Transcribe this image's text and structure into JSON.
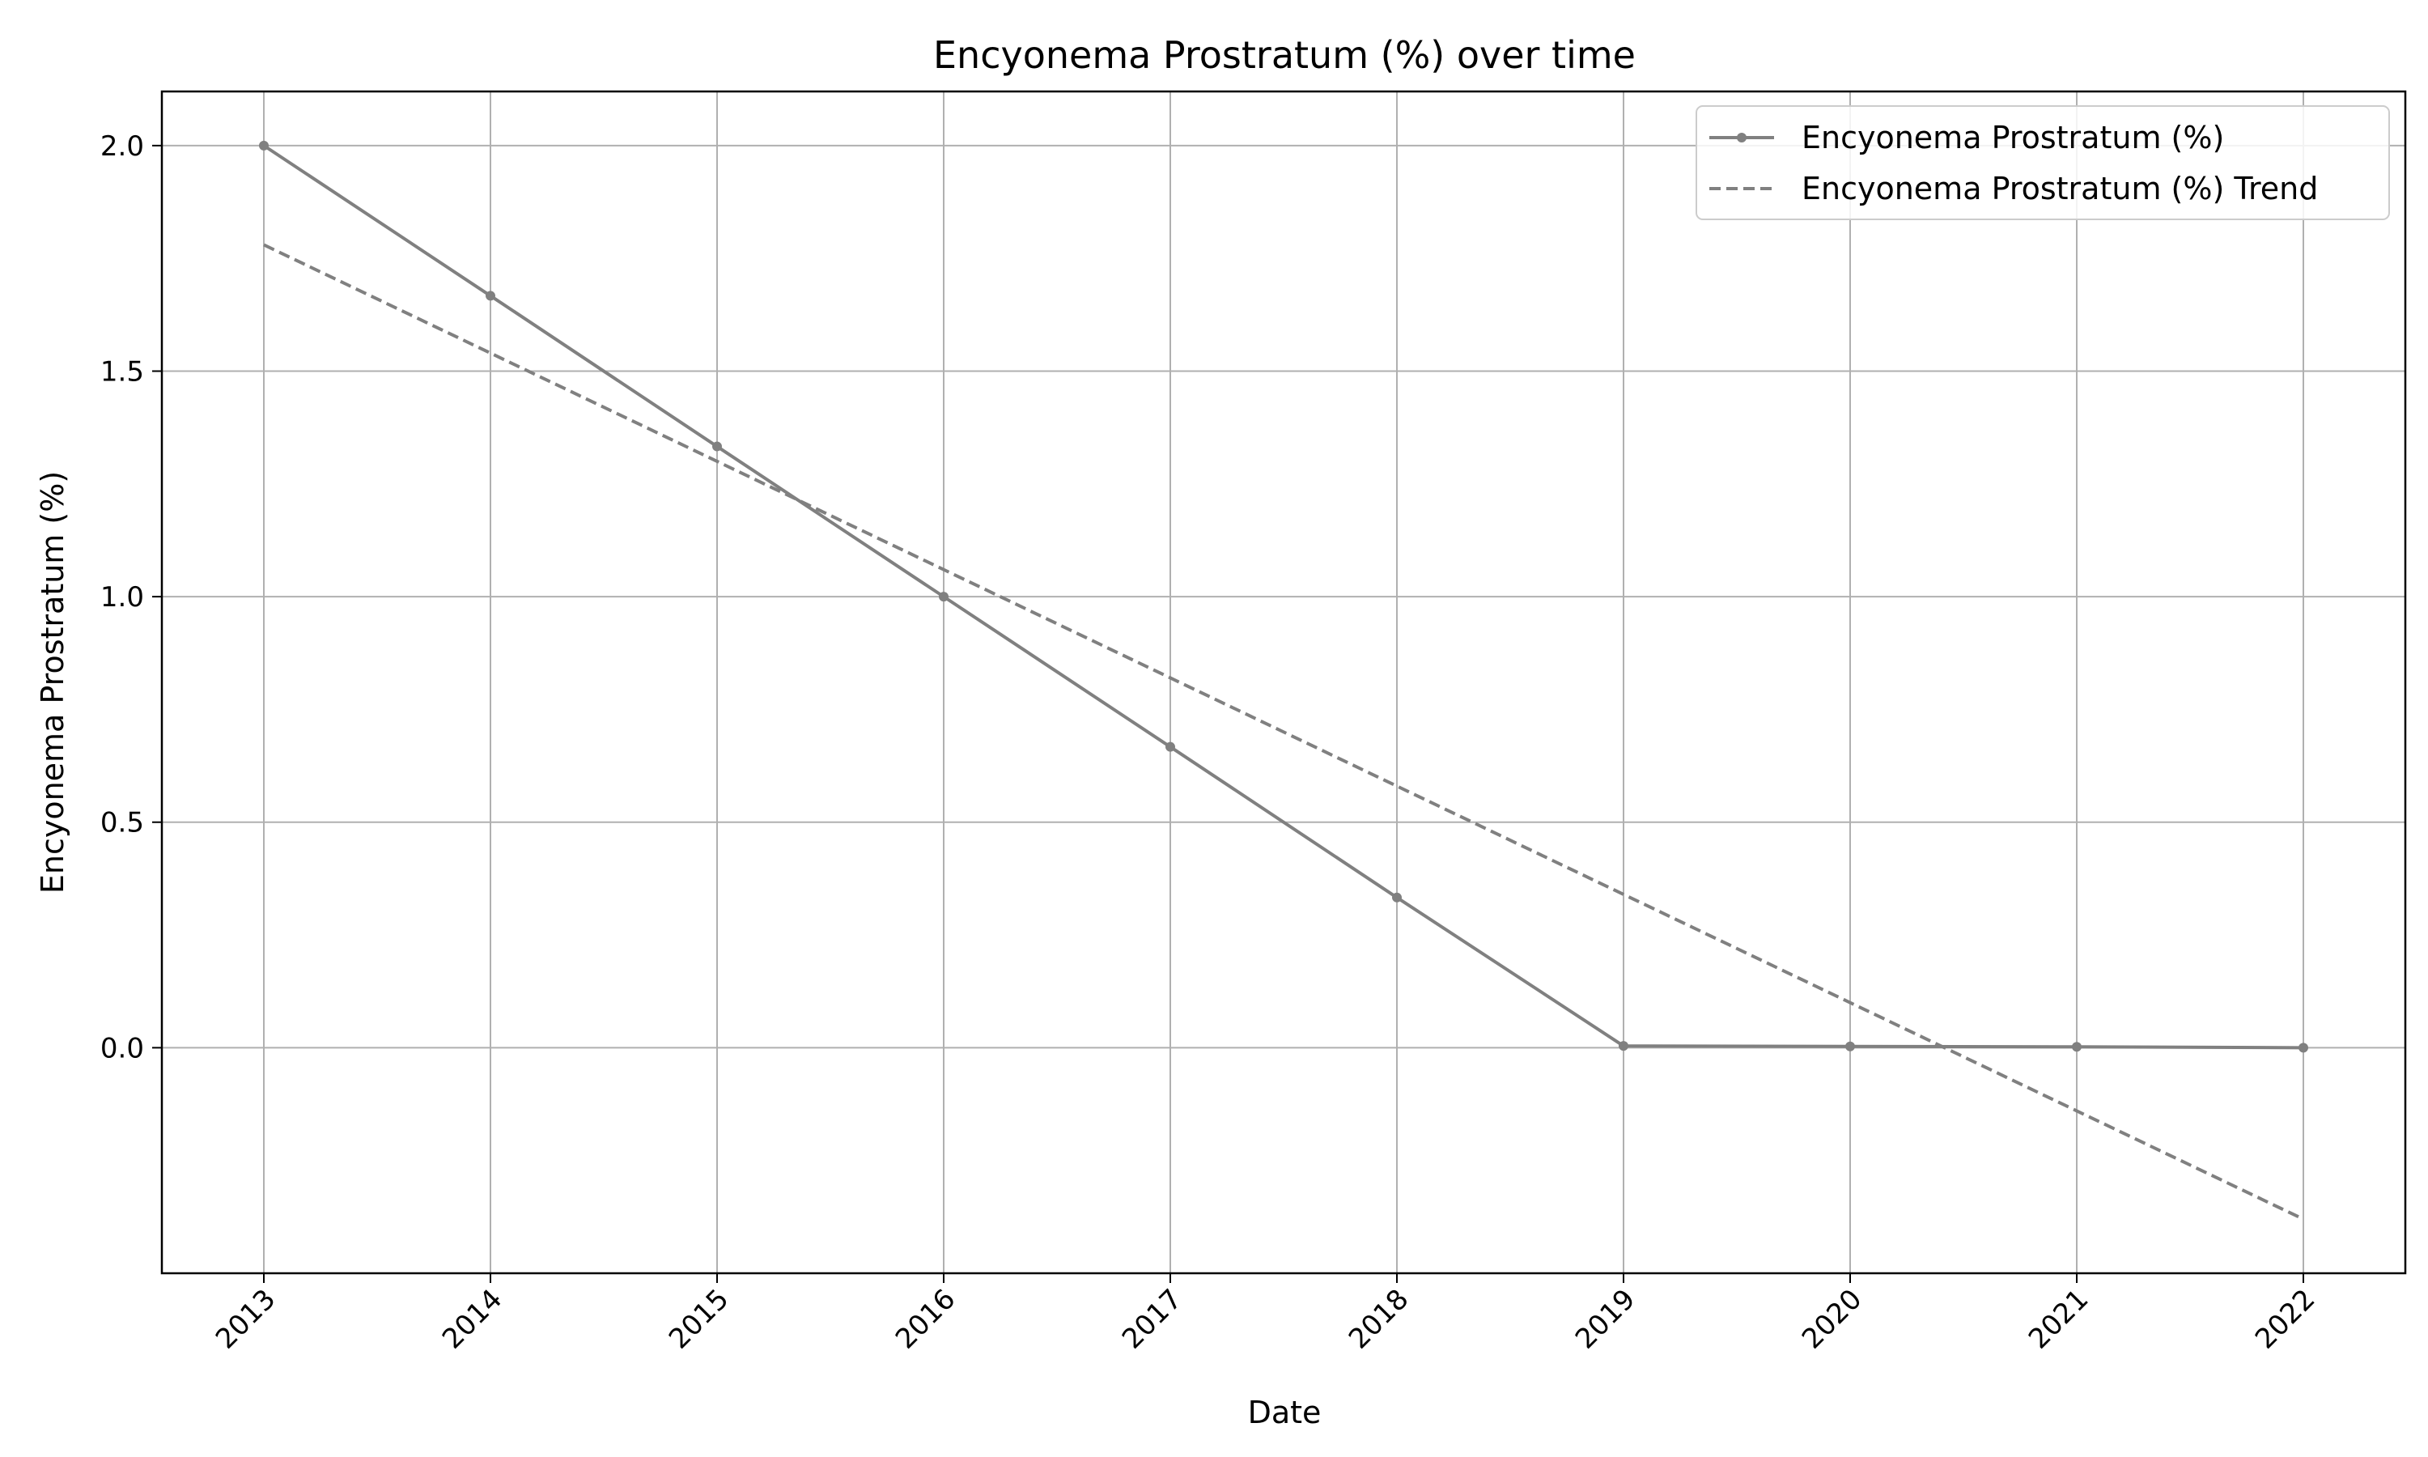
{
  "chart_data": {
    "type": "line",
    "title": "Encyonema Prostratum (%) over time",
    "xlabel": "Date",
    "ylabel": "Encyonema Prostratum (%)",
    "x": [
      "2013",
      "2014",
      "2015",
      "2016",
      "2017",
      "2018",
      "2019",
      "2020",
      "2021",
      "2022"
    ],
    "x_tick_labels": [
      "2013",
      "2014",
      "2015",
      "2016",
      "2017",
      "2018",
      "2019",
      "2020",
      "2021",
      "2022"
    ],
    "y_tick_values": [
      0.0,
      0.5,
      1.0,
      1.5,
      2.0
    ],
    "y_tick_labels": [
      "0.0",
      "0.5",
      "1.0",
      "1.5",
      "2.0"
    ],
    "ylim": [
      -0.5,
      2.12
    ],
    "grid": true,
    "legend_position": "top-right",
    "series": [
      {
        "name": "Encyonema Prostratum (%)",
        "style": "solid-with-markers",
        "color": "#808080",
        "values": [
          2.0,
          1.667,
          1.333,
          1.0,
          0.667,
          0.333,
          0.004,
          0.003,
          0.002,
          0.0
        ]
      },
      {
        "name": "Encyonema Prostratum (%) Trend",
        "style": "dashed",
        "color": "#808080",
        "values": [
          1.78,
          1.54,
          1.3,
          1.06,
          0.82,
          0.58,
          0.34,
          0.1,
          -0.14,
          -0.38
        ]
      }
    ]
  }
}
